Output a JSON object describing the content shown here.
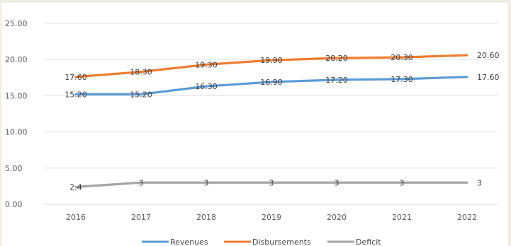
{
  "chart_data": {
    "type": "line",
    "categories": [
      "2016",
      "2017",
      "2018",
      "2019",
      "2020",
      "2021",
      "2022"
    ],
    "ylim": [
      0,
      25
    ],
    "yticks": [
      "0.00",
      "5.00",
      "10.00",
      "15.00",
      "20.00",
      "25.00"
    ],
    "grid": true,
    "legend_position": "bottom",
    "series": [
      {
        "name": "Revenues",
        "color": "#5b9bd5",
        "values": [
          15.2,
          15.2,
          16.3,
          16.9,
          17.2,
          17.3,
          17.6
        ],
        "labels": [
          "15.20",
          "15.20",
          "16.30",
          "16.90",
          "17.20",
          "17.30",
          "17.60"
        ]
      },
      {
        "name": "Disbursements",
        "color": "#ed7d31",
        "values": [
          17.6,
          18.3,
          19.3,
          19.9,
          20.2,
          20.3,
          20.6
        ],
        "labels": [
          "17.60",
          "18.30",
          "19.30",
          "19.90",
          "20.20",
          "20.30",
          "20.60"
        ]
      },
      {
        "name": "Deficit",
        "color": "#a5a5a5",
        "values": [
          2.4,
          3,
          3,
          3,
          3,
          3,
          3
        ],
        "labels": [
          "2.4",
          "3",
          "3",
          "3",
          "3",
          "3",
          "3"
        ]
      }
    ]
  }
}
